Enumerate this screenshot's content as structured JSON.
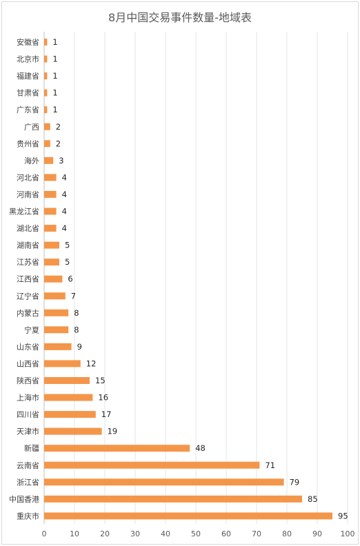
{
  "chart_data": {
    "type": "bar",
    "orientation": "horizontal",
    "title": "8月中国交易事件数量-地域表",
    "categories": [
      "安徽省",
      "北京市",
      "福建省",
      "甘肃省",
      "广东省",
      "广西",
      "贵州省",
      "海外",
      "河北省",
      "河南省",
      "黑龙江省",
      "湖北省",
      "湖南省",
      "江苏省",
      "江西省",
      "辽宁省",
      "内蒙古",
      "宁夏",
      "山东省",
      "山西省",
      "陕西省",
      "上海市",
      "四川省",
      "天津市",
      "新疆",
      "云南省",
      "浙江省",
      "中国香港",
      "重庆市"
    ],
    "values": [
      1,
      1,
      1,
      1,
      1,
      2,
      2,
      3,
      4,
      4,
      4,
      4,
      5,
      5,
      6,
      7,
      8,
      8,
      9,
      12,
      15,
      16,
      17,
      19,
      48,
      71,
      79,
      85,
      95
    ],
    "xlim": [
      0,
      100
    ],
    "xticks": [
      0,
      10,
      20,
      30,
      40,
      50,
      60,
      70,
      80,
      90,
      100
    ],
    "grid": "vertical",
    "legend": "none",
    "data_labels": true,
    "colors": {
      "bar": "#f4964a",
      "grid": "#e6e6e6",
      "text": "#404040",
      "axis": "#bfbfbf"
    }
  }
}
